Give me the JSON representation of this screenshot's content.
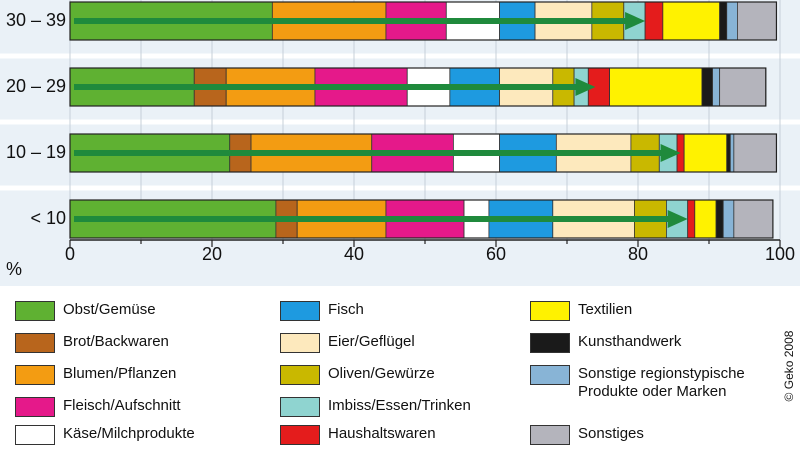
{
  "chart_data": {
    "type": "bar",
    "stacked": true,
    "orientation": "horizontal",
    "categories": [
      "30 – 39",
      "20 – 29",
      "10 – 19",
      "< 10"
    ],
    "xlabel": "%",
    "xlim": [
      0,
      100
    ],
    "xticks": [
      "0",
      "20",
      "40",
      "60",
      "80",
      "100"
    ],
    "grid": true,
    "series": [
      {
        "name": "Obst/Gemüse",
        "color": "#5fb132",
        "values": [
          28.5,
          17.5,
          22.5,
          29
        ]
      },
      {
        "name": "Brot/Backwaren",
        "color": "#b8651c",
        "values": [
          0,
          4.5,
          3,
          3
        ]
      },
      {
        "name": "Blumen/Pflanzen",
        "color": "#f39c12",
        "values": [
          16,
          12.5,
          17,
          12.5
        ]
      },
      {
        "name": "Fleisch/Aufschnitt",
        "color": "#e5198a",
        "values": [
          8.5,
          13,
          11.5,
          11
        ]
      },
      {
        "name": "Käse/Milchprodukte",
        "color": "#ffffff",
        "values": [
          7.5,
          6,
          6.5,
          3.5
        ]
      },
      {
        "name": "Fisch",
        "color": "#1e9ae0",
        "values": [
          5,
          7,
          8,
          9
        ]
      },
      {
        "name": "Eier/Geflügel",
        "color": "#fde9bd",
        "values": [
          8,
          7.5,
          10.5,
          11.5
        ]
      },
      {
        "name": "Oliven/Gewürze",
        "color": "#c9b800",
        "values": [
          4.5,
          3,
          4,
          4.5
        ]
      },
      {
        "name": "Imbiss/Essen/Trinken",
        "color": "#8fd4d0",
        "values": [
          3,
          2,
          2.5,
          3
        ]
      },
      {
        "name": "Haushaltswaren",
        "color": "#e41c1c",
        "values": [
          2.5,
          3,
          1,
          1
        ]
      },
      {
        "name": "Textilien",
        "color": "#fff200",
        "values": [
          8,
          13,
          6,
          3
        ]
      },
      {
        "name": "Kunsthandwerk",
        "color": "#1a1a1a",
        "values": [
          1,
          1.5,
          0.5,
          1
        ]
      },
      {
        "name": "Sonstige regionstypische Produkte oder Marken",
        "color": "#88b4d6",
        "values": [
          1.5,
          1,
          0.5,
          1.5
        ]
      },
      {
        "name": "Sonstiges",
        "color": "#b4b4bc",
        "values": [
          5.5,
          6.5,
          6,
          5.5
        ]
      }
    ],
    "arrows": [
      81,
      74,
      86,
      87
    ],
    "arrow_color": "#1f8a3c"
  },
  "legend": [
    {
      "label": "Obst/Gemüse",
      "color": "#5fb132"
    },
    {
      "label": "Brot/Backwaren",
      "color": "#b8651c"
    },
    {
      "label": "Blumen/Pflanzen",
      "color": "#f39c12"
    },
    {
      "label": "Fleisch/Aufschnitt",
      "color": "#e5198a"
    },
    {
      "label": "Käse/Milchprodukte",
      "color": "#ffffff"
    },
    {
      "label": "Fisch",
      "color": "#1e9ae0"
    },
    {
      "label": "Eier/Geflügel",
      "color": "#fde9bd"
    },
    {
      "label": "Oliven/Gewürze",
      "color": "#c9b800"
    },
    {
      "label": "Imbiss/Essen/Trinken",
      "color": "#8fd4d0"
    },
    {
      "label": "Haushaltswaren",
      "color": "#e41c1c"
    },
    {
      "label": "Textilien",
      "color": "#fff200"
    },
    {
      "label": "Kunsthandwerk",
      "color": "#1a1a1a"
    },
    {
      "label": "Sonstige regionstypische\nProdukte oder Marken",
      "color": "#88b4d6"
    },
    {
      "label": "Sonstiges",
      "color": "#b4b4bc"
    }
  ],
  "copyright": "© Geko 2008"
}
